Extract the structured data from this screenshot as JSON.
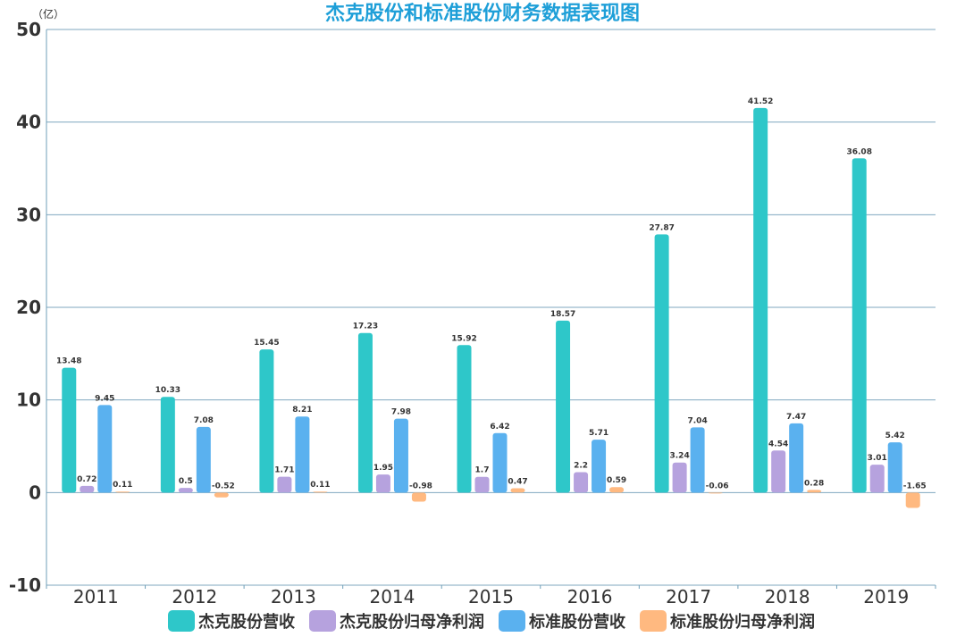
{
  "chart_data": {
    "type": "bar",
    "title": "杰克股份和标准股份财务数据表现图",
    "unit_label": "（亿）",
    "xlabel": "",
    "ylabel": "",
    "ylim": [
      -10,
      50
    ],
    "yticks": [
      -10,
      0,
      10,
      20,
      30,
      40,
      50
    ],
    "categories": [
      "2011",
      "2012",
      "2013",
      "2014",
      "2015",
      "2016",
      "2017",
      "2018",
      "2019"
    ],
    "legend_position": "bottom",
    "series": [
      {
        "name": "杰克股份营收",
        "color": "#2ec7c9",
        "values": [
          13.48,
          10.33,
          15.45,
          17.23,
          15.92,
          18.57,
          27.87,
          41.52,
          36.08
        ]
      },
      {
        "name": "杰克股份归母净利润",
        "color": "#b6a2de",
        "values": [
          0.72,
          0.5,
          1.71,
          1.95,
          1.7,
          2.2,
          3.24,
          4.54,
          3.01
        ]
      },
      {
        "name": "标准股份营收",
        "color": "#5ab1ef",
        "values": [
          9.45,
          7.08,
          8.21,
          7.98,
          6.42,
          5.71,
          7.04,
          7.47,
          5.42
        ]
      },
      {
        "name": "标准股份归母净利润",
        "color": "#ffb980",
        "values": [
          0.11,
          -0.52,
          0.11,
          -0.98,
          0.47,
          0.59,
          -0.06,
          0.28,
          -1.65
        ]
      }
    ]
  },
  "colors": {
    "title": "#1e9fd8",
    "grid": "#7fa7bf",
    "axis": "#6f9fb8"
  }
}
